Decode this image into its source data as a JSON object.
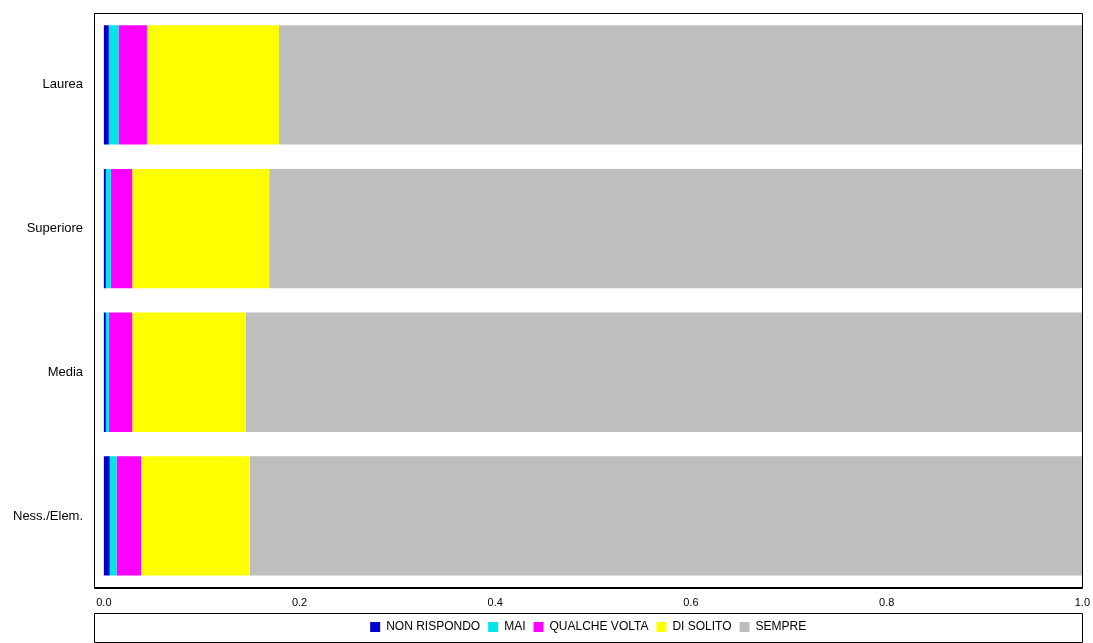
{
  "chart_data": {
    "type": "bar",
    "orientation": "horizontal",
    "stacked": true,
    "categories": [
      "Laurea",
      "Superiore",
      "Media",
      "Ness./Elem."
    ],
    "series": [
      {
        "name": "NON RISPONDO",
        "color": "#0000cc",
        "values": [
          0.005,
          0.002,
          0.002,
          0.006
        ]
      },
      {
        "name": "MAI",
        "color": "#00e5e5",
        "values": [
          0.01,
          0.005,
          0.003,
          0.007
        ]
      },
      {
        "name": "QUALCHE VOLTA",
        "color": "#ff00ff",
        "values": [
          0.029,
          0.022,
          0.024,
          0.025
        ]
      },
      {
        "name": "DI SOLITO",
        "color": "#ffff00",
        "values": [
          0.135,
          0.14,
          0.116,
          0.111
        ]
      },
      {
        "name": "SEMPRE",
        "color": "#bebebe",
        "values": [
          0.821,
          0.831,
          0.855,
          0.851
        ]
      }
    ],
    "xlim": [
      -0.01,
      1.0
    ],
    "xticks": [
      {
        "value": 0,
        "label": "0.0"
      },
      {
        "value": 0.2,
        "label": "0.2"
      },
      {
        "value": 0.4,
        "label": "0.4"
      },
      {
        "value": 0.6,
        "label": "0.6"
      },
      {
        "value": 0.8,
        "label": "0.8"
      },
      {
        "value": 1.0,
        "label": "1.0"
      }
    ],
    "grid": false,
    "legend": "bottom"
  }
}
